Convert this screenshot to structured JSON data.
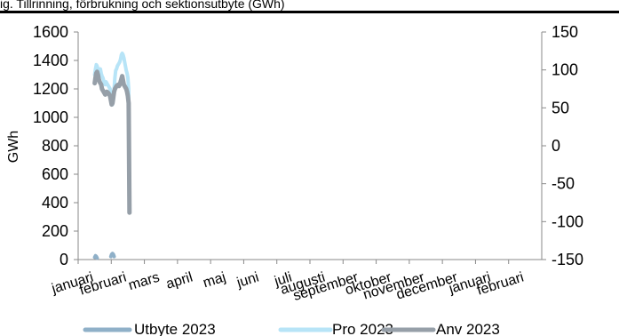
{
  "header": {
    "title": "ig. Tillrinning, förbrukning och sektionsutbyte (GWh)"
  },
  "chart_data": {
    "type": "line",
    "title": "ig. Tillrinning, förbrukning och sektionsutbyte (GWh)",
    "xlabel": "",
    "ylabel": "GWh",
    "ylabel_right": "",
    "ylim": [
      0,
      1600
    ],
    "y2lim": [
      -150,
      150
    ],
    "yticks": [
      0,
      200,
      400,
      600,
      800,
      1000,
      1200,
      1400,
      1600
    ],
    "y2ticks": [
      -150,
      -100,
      -50,
      0,
      50,
      100,
      150
    ],
    "xticks": [
      "januari",
      "februari",
      "mars",
      "april",
      "maj",
      "juni",
      "juli",
      "augusti",
      "september",
      "oktober",
      "november",
      "december",
      "januari",
      "februari"
    ],
    "grid": false,
    "legend_position": "bottom",
    "series": [
      {
        "name": "Utbyte 2023",
        "axis": "right",
        "color": "#8fb0c8",
        "x": [
          0,
          1,
          2,
          3,
          5,
          6,
          7,
          8,
          10,
          12,
          14,
          16,
          18,
          20,
          21,
          22,
          23,
          24,
          25,
          26,
          27,
          28,
          29,
          30,
          31,
          32,
          33,
          34,
          35,
          36,
          37,
          38,
          39,
          40,
          41,
          42,
          43
        ],
        "y": [
          -147,
          -145,
          -146,
          -148,
          null,
          null,
          null,
          null,
          null,
          null,
          null,
          null,
          null,
          -146,
          -143,
          -142,
          -143,
          -146,
          null,
          null,
          null,
          null,
          null,
          null,
          null,
          null,
          null,
          null,
          null,
          null,
          null,
          null,
          null,
          null,
          null,
          null,
          null
        ]
      },
      {
        "name": "Pro 2023",
        "axis": "left",
        "color": "#b7e4f7",
        "x": [
          0,
          1,
          2,
          3,
          4,
          5,
          6,
          7,
          8,
          9,
          10,
          11,
          12,
          13,
          14,
          15,
          16,
          17,
          18,
          19,
          20,
          21,
          22,
          23,
          24,
          25,
          26,
          27,
          28,
          29,
          30,
          31,
          32,
          33,
          34,
          35,
          36,
          37,
          38,
          39,
          40,
          41,
          42,
          43
        ],
        "y": [
          1300,
          1340,
          1370,
          1360,
          1340,
          1320,
          1330,
          1340,
          1310,
          1290,
          1280,
          1260,
          1240,
          1230,
          1250,
          1240,
          1230,
          1220,
          1210,
          1200,
          1150,
          1100,
          1090,
          1120,
          1200,
          1280,
          1330,
          1340,
          1360,
          1370,
          1380,
          1390,
          1410,
          1440,
          1450,
          1440,
          1420,
          1390,
          1360,
          1330,
          1310,
          1280,
          1200,
          330
        ]
      },
      {
        "name": "Anv 2023",
        "axis": "left",
        "color": "#969fa8",
        "x": [
          0,
          1,
          2,
          3,
          4,
          5,
          6,
          7,
          8,
          9,
          10,
          11,
          12,
          13,
          14,
          15,
          16,
          17,
          18,
          19,
          20,
          21,
          22,
          23,
          24,
          25,
          26,
          27,
          28,
          29,
          30,
          31,
          32,
          33,
          34,
          35,
          36,
          37,
          38,
          39,
          40,
          41,
          42,
          43
        ],
        "y": [
          1240,
          1280,
          1310,
          1320,
          1300,
          1270,
          1250,
          1240,
          1230,
          1200,
          1190,
          1180,
          1170,
          1160,
          1170,
          1180,
          1175,
          1170,
          1160,
          1150,
          1120,
          1090,
          1100,
          1140,
          1180,
          1200,
          1210,
          1220,
          1225,
          1230,
          1220,
          1230,
          1250,
          1270,
          1290,
          1260,
          1230,
          1220,
          1210,
          1200,
          1180,
          1150,
          1100,
          330
        ]
      }
    ]
  }
}
